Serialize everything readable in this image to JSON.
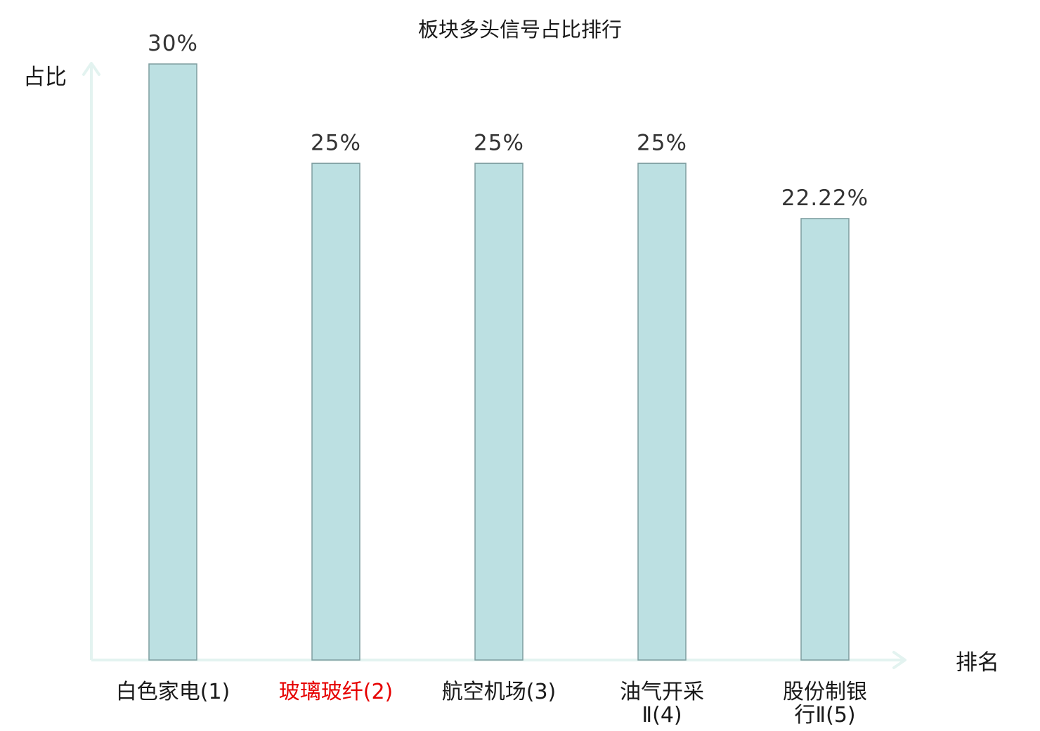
{
  "chart_data": {
    "type": "bar",
    "title": "板块多头信号占比排行",
    "xlabel": "排名",
    "ylabel": "占比",
    "categories": [
      [
        "白色家电(1)"
      ],
      [
        "玻璃玻纤(2)"
      ],
      [
        "航空机场(3)"
      ],
      [
        "油气开采",
        "Ⅱ(4)"
      ],
      [
        "股份制银",
        "行Ⅱ(5)"
      ]
    ],
    "values": [
      30,
      25,
      25,
      25,
      22.22
    ],
    "value_labels": [
      "30%",
      "25%",
      "25%",
      "25%",
      "22.22%"
    ],
    "highlight_index": 1,
    "ylim": [
      0,
      30
    ],
    "grid": false,
    "colors": {
      "bar_fill": "#bce0e2",
      "bar_stroke": "#7f9ea0",
      "axis": "#e3f3f0",
      "highlight_text": "#e60000",
      "text": "#1a1a1a",
      "value_text": "#333333"
    }
  }
}
